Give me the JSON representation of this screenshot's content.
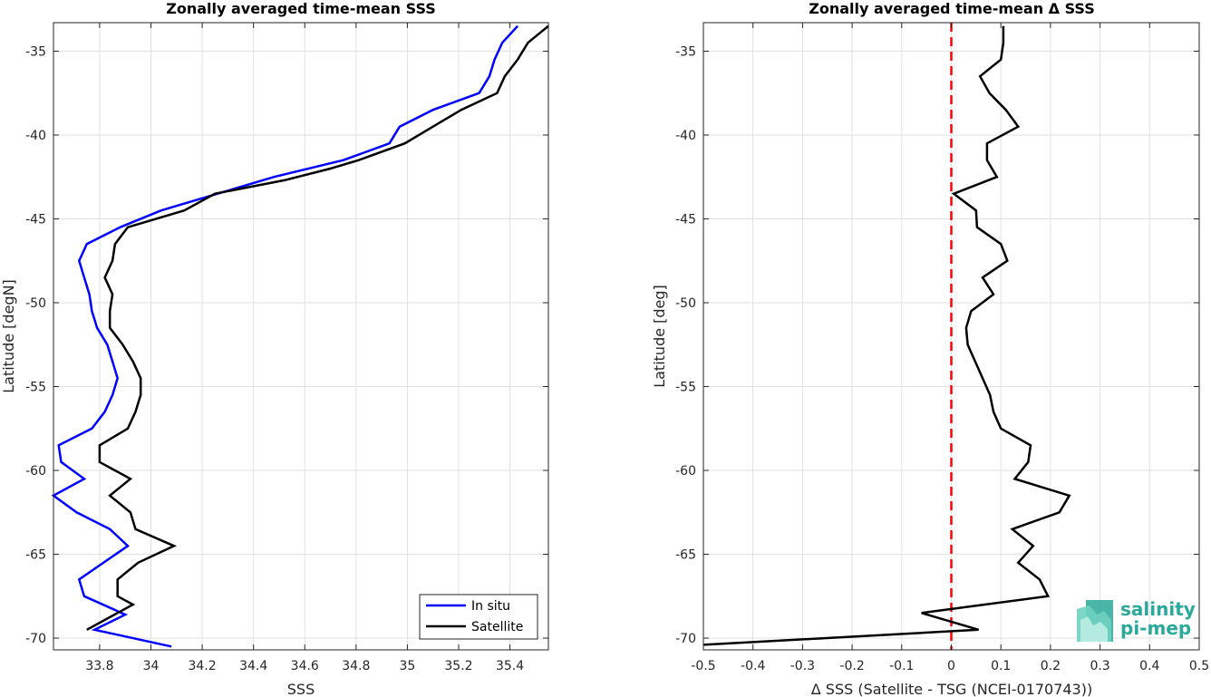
{
  "chart_data": [
    {
      "type": "line",
      "title": "Zonally averaged time-mean SSS",
      "xlabel": "SSS",
      "ylabel": "Latitude [degN]",
      "xlim": [
        33.62,
        35.55
      ],
      "ylim": [
        -70.7,
        -33.3
      ],
      "xticks": [
        "33.8",
        "34",
        "34.2",
        "34.4",
        "34.6",
        "34.8",
        "35",
        "35.2",
        "35.4"
      ],
      "xtick_values": [
        33.8,
        34.0,
        34.2,
        34.4,
        34.6,
        34.8,
        35.0,
        35.2,
        35.4
      ],
      "yticks": [
        "-35",
        "-40",
        "-45",
        "-50",
        "-55",
        "-60",
        "-65",
        "-70"
      ],
      "ytick_values": [
        -35,
        -40,
        -45,
        -50,
        -55,
        -60,
        -65,
        -70
      ],
      "grid": true,
      "legend_position": "bottom-right",
      "series": [
        {
          "name": "In situ",
          "color": "#0000ff",
          "points": [
            [
              35.43,
              -33.5
            ],
            [
              35.37,
              -34.5
            ],
            [
              35.34,
              -35.5
            ],
            [
              35.32,
              -36.5
            ],
            [
              35.28,
              -37.5
            ],
            [
              35.1,
              -38.5
            ],
            [
              34.97,
              -39.5
            ],
            [
              34.93,
              -40.5
            ],
            [
              34.84,
              -41.0
            ],
            [
              34.75,
              -41.5
            ],
            [
              34.48,
              -42.5
            ],
            [
              34.26,
              -43.5
            ],
            [
              34.04,
              -44.5
            ],
            [
              33.88,
              -45.5
            ],
            [
              33.75,
              -46.5
            ],
            [
              33.72,
              -47.5
            ],
            [
              33.74,
              -48.5
            ],
            [
              33.76,
              -49.5
            ],
            [
              33.77,
              -50.5
            ],
            [
              33.79,
              -51.5
            ],
            [
              33.83,
              -52.5
            ],
            [
              33.85,
              -53.5
            ],
            [
              33.87,
              -54.5
            ],
            [
              33.85,
              -55.5
            ],
            [
              33.82,
              -56.5
            ],
            [
              33.77,
              -57.5
            ],
            [
              33.64,
              -58.5
            ],
            [
              33.65,
              -59.5
            ],
            [
              33.74,
              -60.5
            ],
            [
              33.62,
              -61.5
            ],
            [
              33.71,
              -62.5
            ],
            [
              33.84,
              -63.5
            ],
            [
              33.91,
              -64.5
            ],
            [
              33.72,
              -66.5
            ],
            [
              33.74,
              -67.5
            ],
            [
              33.9,
              -68.6
            ],
            [
              33.78,
              -69.5
            ],
            [
              34.08,
              -70.5
            ]
          ]
        },
        {
          "name": "Satellite",
          "color": "#000000",
          "points": [
            [
              35.55,
              -33.5
            ],
            [
              35.47,
              -34.5
            ],
            [
              35.43,
              -35.5
            ],
            [
              35.38,
              -36.5
            ],
            [
              35.35,
              -37.5
            ],
            [
              35.21,
              -38.5
            ],
            [
              35.1,
              -39.5
            ],
            [
              34.99,
              -40.5
            ],
            [
              34.81,
              -41.5
            ],
            [
              34.7,
              -42.0
            ],
            [
              34.52,
              -42.7
            ],
            [
              34.25,
              -43.5
            ],
            [
              34.13,
              -44.5
            ],
            [
              33.91,
              -45.5
            ],
            [
              33.86,
              -46.5
            ],
            [
              33.85,
              -47.5
            ],
            [
              33.82,
              -48.5
            ],
            [
              33.85,
              -49.5
            ],
            [
              33.84,
              -50.5
            ],
            [
              33.84,
              -51.5
            ],
            [
              33.89,
              -52.5
            ],
            [
              33.93,
              -53.5
            ],
            [
              33.96,
              -54.5
            ],
            [
              33.96,
              -55.5
            ],
            [
              33.94,
              -56.5
            ],
            [
              33.91,
              -57.5
            ],
            [
              33.8,
              -58.5
            ],
            [
              33.8,
              -59.5
            ],
            [
              33.92,
              -60.5
            ],
            [
              33.84,
              -61.5
            ],
            [
              33.92,
              -62.5
            ],
            [
              33.94,
              -63.5
            ],
            [
              34.09,
              -64.5
            ],
            [
              33.95,
              -65.5
            ],
            [
              33.87,
              -66.5
            ],
            [
              33.87,
              -67.5
            ],
            [
              33.93,
              -68.0
            ],
            [
              33.75,
              -69.5
            ]
          ]
        }
      ]
    },
    {
      "type": "line",
      "title": "Zonally averaged time-mean Δ SSS",
      "xlabel": "Δ SSS (Satellite - TSG (NCEI-0170743))",
      "ylabel": "Latitude [deg]",
      "xlim": [
        -0.5,
        0.5
      ],
      "ylim": [
        -70.7,
        -33.3
      ],
      "xticks": [
        "-0.5",
        "-0.4",
        "-0.3",
        "-0.2",
        "-0.1",
        "0",
        "0.1",
        "0.2",
        "0.3",
        "0.4",
        "0.5"
      ],
      "xtick_values": [
        -0.5,
        -0.4,
        -0.3,
        -0.2,
        -0.1,
        0,
        0.1,
        0.2,
        0.3,
        0.4,
        0.5
      ],
      "yticks": [
        "-35",
        "-40",
        "-45",
        "-50",
        "-55",
        "-60",
        "-65",
        "-70"
      ],
      "ytick_values": [
        -35,
        -40,
        -45,
        -50,
        -55,
        -60,
        -65,
        -70
      ],
      "grid": true,
      "reference_line": {
        "x": 0,
        "color": "#ff0000",
        "style": "dashed"
      },
      "series": [
        {
          "name": "",
          "color": "#000000",
          "points": [
            [
              0.105,
              -33.5
            ],
            [
              0.105,
              -34.5
            ],
            [
              0.1,
              -35.5
            ],
            [
              0.058,
              -36.5
            ],
            [
              0.077,
              -37.5
            ],
            [
              0.11,
              -38.5
            ],
            [
              0.135,
              -39.5
            ],
            [
              0.072,
              -40.5
            ],
            [
              0.072,
              -41.5
            ],
            [
              0.092,
              -42.5
            ],
            [
              0.005,
              -43.5
            ],
            [
              0.05,
              -44.5
            ],
            [
              0.052,
              -45.5
            ],
            [
              0.1,
              -46.5
            ],
            [
              0.113,
              -47.5
            ],
            [
              0.063,
              -48.5
            ],
            [
              0.085,
              -49.5
            ],
            [
              0.04,
              -50.5
            ],
            [
              0.03,
              -51.5
            ],
            [
              0.033,
              -52.5
            ],
            [
              0.048,
              -53.5
            ],
            [
              0.063,
              -54.5
            ],
            [
              0.078,
              -55.5
            ],
            [
              0.085,
              -56.5
            ],
            [
              0.1,
              -57.5
            ],
            [
              0.16,
              -58.5
            ],
            [
              0.155,
              -59.5
            ],
            [
              0.128,
              -60.5
            ],
            [
              0.238,
              -61.5
            ],
            [
              0.218,
              -62.5
            ],
            [
              0.123,
              -63.5
            ],
            [
              0.165,
              -64.5
            ],
            [
              0.135,
              -65.5
            ],
            [
              0.178,
              -66.5
            ],
            [
              0.195,
              -67.5
            ],
            [
              -0.06,
              -68.5
            ],
            [
              0.055,
              -69.5
            ],
            [
              -0.5,
              -70.4
            ]
          ]
        }
      ]
    }
  ],
  "legend": {
    "items": [
      {
        "label": "In situ",
        "color": "#0000ff"
      },
      {
        "label": "Satellite",
        "color": "#000000"
      }
    ]
  },
  "logo": {
    "line1": "salinity",
    "line2": "pi-mep"
  }
}
